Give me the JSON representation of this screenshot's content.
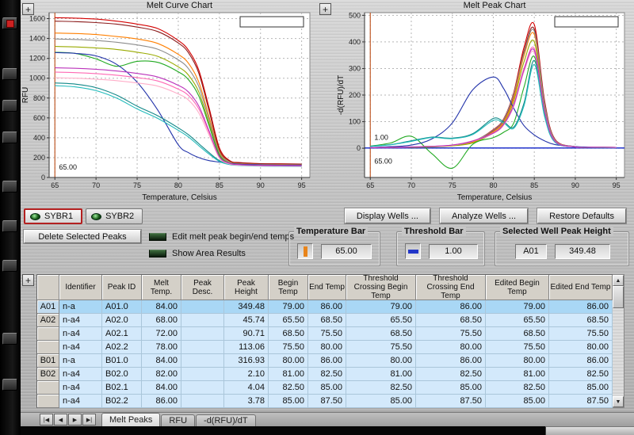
{
  "icons": {
    "plus": "+",
    "up_arrow": "▲",
    "down_arrow": "▼"
  },
  "chart_data": [
    {
      "type": "line",
      "title": "Melt Curve Chart",
      "xlabel": "Temperature, Celsius",
      "ylabel": "RFU",
      "xlim": [
        64.3,
        96
      ],
      "ylim": [
        0,
        1660
      ],
      "xticks": [
        65,
        70,
        75,
        80,
        85,
        90,
        95
      ],
      "yticks": [
        0,
        200,
        400,
        600,
        800,
        1000,
        1200,
        1400,
        1600
      ],
      "grid": true,
      "legend_box": true,
      "x": [
        65,
        67.5,
        70,
        72.5,
        75,
        77.5,
        80,
        81.25,
        82.5,
        83.75,
        85,
        86.25,
        87.5,
        90,
        92.5,
        95
      ],
      "annotations": {
        "vline_x": 65,
        "vline_color": "#c05a28",
        "labels": [
          {
            "x": 65.5,
            "y": 80,
            "text": "65.00",
            "color": "#111111"
          }
        ]
      },
      "series": [
        {
          "color": "#d40000",
          "values": [
            1610,
            1605,
            1595,
            1575,
            1545,
            1500,
            1380,
            1280,
            1080,
            700,
            300,
            170,
            150,
            140,
            138,
            136
          ]
        },
        {
          "color": "#8b1a1a",
          "values": [
            1575,
            1570,
            1560,
            1545,
            1515,
            1470,
            1355,
            1255,
            1050,
            670,
            280,
            165,
            148,
            138,
            136,
            134
          ]
        },
        {
          "color": "#ff7f00",
          "values": [
            1455,
            1450,
            1440,
            1420,
            1395,
            1350,
            1240,
            1150,
            960,
            610,
            260,
            155,
            140,
            132,
            130,
            128
          ]
        },
        {
          "color": "#99aa00",
          "values": [
            1320,
            1315,
            1305,
            1290,
            1262,
            1220,
            1115,
            1030,
            860,
            545,
            235,
            148,
            134,
            127,
            125,
            123
          ]
        },
        {
          "color": "#22aa22",
          "values": [
            1262,
            1250,
            1195,
            1120,
            1170,
            1160,
            1065,
            985,
            820,
            520,
            225,
            143,
            130,
            124,
            122,
            120
          ]
        },
        {
          "color": "#8c8c8c",
          "values": [
            1395,
            1390,
            1380,
            1362,
            1335,
            1292,
            1185,
            1095,
            915,
            580,
            250,
            152,
            137,
            130,
            128,
            126
          ]
        },
        {
          "color": "#2233aa",
          "values": [
            1258,
            1250,
            1225,
            1140,
            960,
            680,
            330,
            250,
            200,
            170,
            155,
            140,
            133,
            126,
            124,
            122
          ]
        },
        {
          "color": "#118888",
          "values": [
            952,
            940,
            905,
            830,
            718,
            622,
            500,
            430,
            340,
            250,
            170,
            135,
            125,
            118,
            116,
            114
          ]
        },
        {
          "color": "#22bbbb",
          "values": [
            925,
            912,
            875,
            800,
            690,
            595,
            475,
            408,
            320,
            235,
            162,
            130,
            121,
            115,
            113,
            111
          ]
        },
        {
          "color": "#ff69b4",
          "values": [
            1062,
            1056,
            1046,
            1030,
            1006,
            972,
            890,
            825,
            690,
            450,
            205,
            140,
            128,
            121,
            119,
            117
          ]
        },
        {
          "color": "#ffaec9",
          "values": [
            1005,
            1000,
            990,
            975,
            952,
            920,
            842,
            780,
            650,
            425,
            196,
            136,
            124,
            118,
            116,
            114
          ]
        },
        {
          "color": "#bb33bb",
          "values": [
            1105,
            1100,
            1090,
            1073,
            1048,
            1012,
            928,
            860,
            718,
            468,
            210,
            142,
            129,
            122,
            120,
            118
          ]
        }
      ]
    },
    {
      "type": "line",
      "title": "Melt Peak Chart",
      "xlabel": "Temperature, Celsius",
      "ylabel": "-d(RFU)/dT",
      "xlim": [
        64.3,
        96
      ],
      "ylim": [
        -110,
        510
      ],
      "xticks": [
        65,
        70,
        75,
        80,
        85,
        90,
        95
      ],
      "yticks": [
        0,
        100,
        200,
        300,
        400,
        500
      ],
      "grid": true,
      "legend_box": true,
      "x": [
        65,
        67.5,
        70,
        72.5,
        75,
        77.5,
        80,
        81.25,
        82.5,
        83.75,
        85,
        86.25,
        87.5,
        90,
        92.5,
        95
      ],
      "annotations": {
        "vline_x": 65,
        "vline_color": "#c05a28",
        "hline_y": 1,
        "hline_color": "#2233cc",
        "labels": [
          {
            "x": 65.5,
            "y": 32,
            "text": "1.00",
            "color": "#111111"
          },
          {
            "x": 65.5,
            "y": -58,
            "text": "65.00",
            "color": "#111111"
          }
        ]
      },
      "series": [
        {
          "color": "#d40000",
          "values": [
            2,
            3,
            4,
            6,
            10,
            25,
            70,
            110,
            210,
            380,
            465,
            180,
            35,
            6,
            4,
            3
          ]
        },
        {
          "color": "#8b1a1a",
          "values": [
            2,
            3,
            4,
            6,
            10,
            24,
            66,
            105,
            200,
            365,
            448,
            172,
            33,
            6,
            4,
            3
          ]
        },
        {
          "color": "#ff7f00",
          "values": [
            2,
            3,
            4,
            6,
            9,
            22,
            62,
            98,
            190,
            348,
            428,
            163,
            31,
            5,
            4,
            3
          ]
        },
        {
          "color": "#99aa00",
          "values": [
            2,
            3,
            4,
            5,
            9,
            20,
            58,
            92,
            178,
            325,
            400,
            152,
            29,
            5,
            4,
            3
          ]
        },
        {
          "color": "#22aa22",
          "values": [
            8,
            20,
            45,
            -20,
            -75,
            15,
            40,
            60,
            95,
            230,
            345,
            130,
            25,
            5,
            3,
            2
          ]
        },
        {
          "color": "#8c8c8c",
          "values": [
            2,
            3,
            5,
            7,
            11,
            26,
            68,
            108,
            205,
            358,
            440,
            168,
            32,
            6,
            4,
            3
          ]
        },
        {
          "color": "#2233aa",
          "values": [
            3,
            6,
            12,
            35,
            95,
            220,
            268,
            225,
            150,
            85,
            50,
            28,
            14,
            6,
            4,
            3
          ]
        },
        {
          "color": "#118888",
          "values": [
            8,
            14,
            28,
            42,
            38,
            55,
            112,
            100,
            80,
            170,
            330,
            125,
            24,
            5,
            3,
            2
          ]
        },
        {
          "color": "#22bbbb",
          "values": [
            7,
            13,
            26,
            40,
            36,
            52,
            105,
            95,
            75,
            160,
            315,
            120,
            23,
            5,
            3,
            2
          ]
        },
        {
          "color": "#ff69b4",
          "values": [
            2,
            3,
            5,
            7,
            12,
            28,
            58,
            90,
            165,
            300,
            375,
            145,
            28,
            5,
            4,
            3
          ]
        },
        {
          "color": "#ffaec9",
          "values": [
            2,
            3,
            5,
            7,
            11,
            26,
            55,
            86,
            158,
            288,
            360,
            140,
            27,
            5,
            4,
            3
          ]
        },
        {
          "color": "#bb33bb",
          "values": [
            2,
            3,
            5,
            7,
            12,
            27,
            57,
            89,
            162,
            295,
            368,
            142,
            27,
            5,
            4,
            3
          ]
        }
      ]
    }
  ],
  "controls": {
    "fluor_tabs": [
      {
        "label": "SYBR1",
        "selected": true
      },
      {
        "label": "SYBR2",
        "selected": false
      }
    ],
    "display_wells_label": "Display Wells ...",
    "analyze_wells_label": "Analyze Wells ...",
    "restore_defaults_label": "Restore Defaults",
    "delete_selected_label": "Delete Selected Peaks",
    "checkboxes": [
      {
        "label": "Edit melt peak begin/end temps",
        "checked": true
      },
      {
        "label": "Show Area Results",
        "checked": false
      }
    ],
    "temperature_bar": {
      "label": "Temperature Bar",
      "value": "65.00"
    },
    "threshold_bar": {
      "label": "Threshold Bar",
      "value": "1.00"
    },
    "selected_well_peak_height": {
      "label": "Selected Well Peak Height",
      "well": "A01",
      "value": "349.48"
    }
  },
  "table": {
    "columns": [
      "",
      "Identifier",
      "Peak ID",
      "Melt Temp.",
      "Peak Desc.",
      "Peak Height",
      "Begin Temp",
      "End Temp",
      "Threshold Crossing Begin Temp",
      "Threshold Crossing End Temp",
      "Edited Begin Temp",
      "Edited End Temp"
    ],
    "selected_row_index": 0,
    "rows": [
      [
        "A01",
        "n-a",
        "A01.0",
        "84.00",
        "",
        "349.48",
        "79.00",
        "86.00",
        "79.00",
        "86.00",
        "79.00",
        "86.00"
      ],
      [
        "A02",
        "n-a4",
        "A02.0",
        "68.00",
        "",
        "45.74",
        "65.50",
        "68.50",
        "65.50",
        "68.50",
        "65.50",
        "68.50"
      ],
      [
        "",
        "n-a4",
        "A02.1",
        "72.00",
        "",
        "90.71",
        "68.50",
        "75.50",
        "68.50",
        "75.50",
        "68.50",
        "75.50"
      ],
      [
        "",
        "n-a4",
        "A02.2",
        "78.00",
        "",
        "113.06",
        "75.50",
        "80.00",
        "75.50",
        "80.00",
        "75.50",
        "80.00"
      ],
      [
        "B01",
        "n-a",
        "B01.0",
        "84.00",
        "",
        "316.93",
        "80.00",
        "86.00",
        "80.00",
        "86.00",
        "80.00",
        "86.00"
      ],
      [
        "B02",
        "n-a4",
        "B02.0",
        "82.00",
        "",
        "2.10",
        "81.00",
        "82.50",
        "81.00",
        "82.50",
        "81.00",
        "82.50"
      ],
      [
        "",
        "n-a4",
        "B02.1",
        "84.00",
        "",
        "4.04",
        "82.50",
        "85.00",
        "82.50",
        "85.00",
        "82.50",
        "85.00"
      ],
      [
        "",
        "n-a4",
        "B02.2",
        "86.00",
        "",
        "3.78",
        "85.00",
        "87.50",
        "85.00",
        "87.50",
        "85.00",
        "87.50"
      ]
    ]
  },
  "bottom_tabs": {
    "nav_icons": [
      "|◀",
      "◀",
      "▶",
      "▶|"
    ],
    "tabs": [
      "Melt Peaks",
      "RFU",
      "-d(RFU)/dT"
    ],
    "active": "Melt Peaks"
  }
}
